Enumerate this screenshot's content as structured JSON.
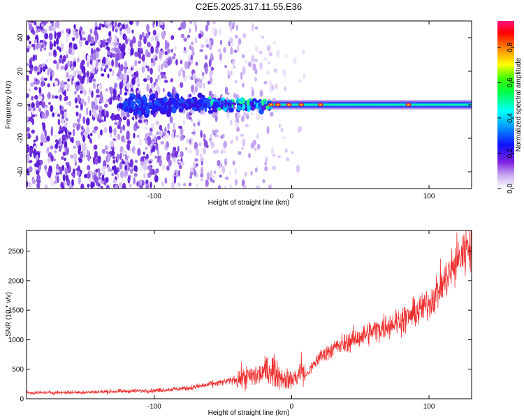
{
  "title": "C2E5.2025.317.11.55.E36",
  "chart_data": [
    {
      "type": "heatmap",
      "title": "C2E5.2025.317.11.55.E36",
      "xlabel": "Height of straight line (km)",
      "ylabel": "Frequency (Hz)",
      "xlim": [
        -193,
        131
      ],
      "ylim": [
        -50,
        50
      ],
      "xticks": [
        -100,
        0,
        100
      ],
      "xtick_labels": [
        "-100",
        "0",
        "100"
      ],
      "yticks": [
        -40,
        -20,
        0,
        20,
        40
      ],
      "ytick_labels": [
        "-40",
        "-20",
        "0",
        "20",
        "40"
      ],
      "colorbar": {
        "label": "Normalized spectral amplitude",
        "range": [
          0,
          0.95
        ],
        "ticks": [
          0,
          0.2,
          0.4,
          0.6,
          0.8
        ],
        "tick_labels": [
          "0.0",
          "0.2",
          "0.4",
          "0.6",
          "0.8"
        ]
      },
      "description_points": {
        "band_center_hz": 0,
        "band_halfwidth_hz": 3,
        "noise_extent_km": [
          -193,
          -20
        ],
        "high_amplitude_peaks_km": [
          -15,
          -10,
          -2,
          7,
          21,
          85
        ]
      }
    },
    {
      "type": "line",
      "xlabel": "Height of straight line (km)",
      "ylabel": "SNR (10 * v/v)",
      "xlim": [
        -193,
        131
      ],
      "ylim": [
        0,
        2850
      ],
      "xticks": [
        -100,
        0,
        100
      ],
      "xtick_labels": [
        "-100",
        "0",
        "100"
      ],
      "yticks": [
        0,
        500,
        1000,
        1500,
        2000,
        2500
      ],
      "ytick_labels": [
        "0",
        "500",
        "1000",
        "1500",
        "2000",
        "2500"
      ],
      "series": [
        {
          "name": "SNR",
          "color": "#f03030",
          "x": [
            -193,
            -150,
            -100,
            -75,
            -50,
            -25,
            -15,
            -5,
            0,
            5,
            7,
            10,
            20,
            30,
            40,
            50,
            60,
            70,
            80,
            90,
            100,
            110,
            120,
            131
          ],
          "values": [
            100,
            110,
            140,
            180,
            280,
            400,
            500,
            330,
            320,
            400,
            520,
            380,
            700,
            850,
            950,
            1050,
            1150,
            1250,
            1330,
            1450,
            1620,
            1950,
            2300,
            2700
          ]
        }
      ]
    }
  ]
}
